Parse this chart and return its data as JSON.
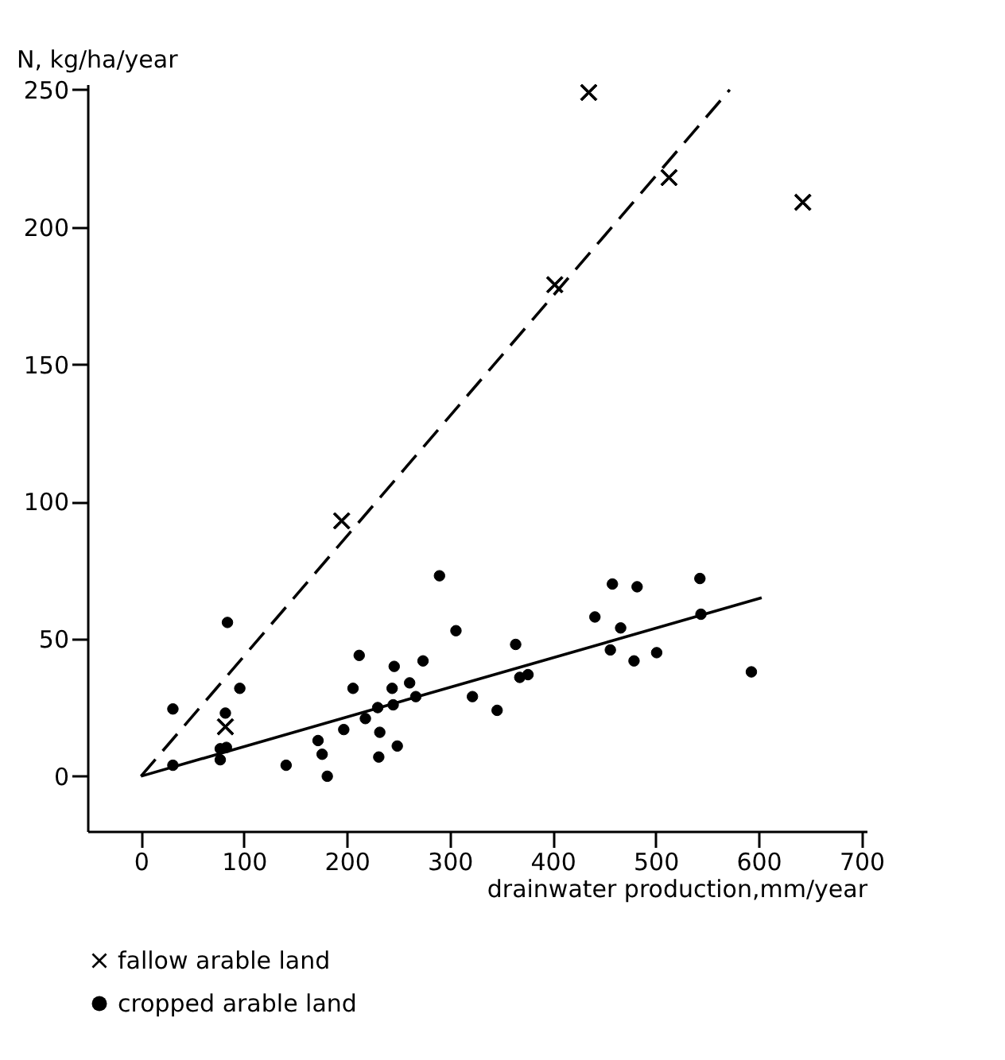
{
  "chart_data": {
    "type": "scatter",
    "xlabel": "drainwater production,mm/year",
    "ylabel": "N, kg/ha/year",
    "xlim": [
      -52,
      705
    ],
    "ylim": [
      -20,
      252
    ],
    "xticks": [
      0,
      100,
      200,
      300,
      400,
      500,
      600,
      700
    ],
    "yticks": [
      0,
      50,
      100,
      150,
      200,
      250
    ],
    "grid": false,
    "legend": "bottom",
    "series": [
      {
        "name": "fallow arable land",
        "type": "scatter",
        "marker": "cross",
        "color": "#000000",
        "x": [
          82,
          195,
          402,
          435,
          513,
          643
        ],
        "values": [
          18,
          93,
          179,
          249,
          218,
          209
        ]
      },
      {
        "name": "cropped arable land",
        "type": "scatter",
        "marker": "circle",
        "color": "#000000",
        "x": [
          31,
          31,
          84,
          96,
          82,
          77,
          83,
          77,
          141,
          172,
          176,
          181,
          197,
          206,
          212,
          218,
          230,
          232,
          231,
          246,
          244,
          245,
          249,
          261,
          267,
          274,
          290,
          306,
          322,
          346,
          364,
          368,
          376,
          441,
          458,
          466,
          456,
          479,
          482,
          501,
          543,
          544,
          593
        ],
        "values": [
          24.5,
          4,
          56,
          32,
          23,
          10,
          10.5,
          6,
          4,
          13,
          8,
          0,
          17,
          32,
          44,
          21,
          25,
          16,
          7,
          40,
          32,
          26,
          11,
          34,
          29,
          42,
          73,
          53,
          29,
          24,
          48,
          36,
          37,
          58,
          70,
          54,
          46,
          42,
          69,
          45,
          72,
          59,
          38
        ]
      },
      {
        "type": "line",
        "line_style": "dashed",
        "color": "#000000",
        "x": [
          0,
          572
        ],
        "values": [
          0,
          250
        ]
      },
      {
        "type": "line",
        "line_style": "solid",
        "color": "#000000",
        "x": [
          0,
          603
        ],
        "values": [
          0,
          65
        ]
      }
    ]
  }
}
